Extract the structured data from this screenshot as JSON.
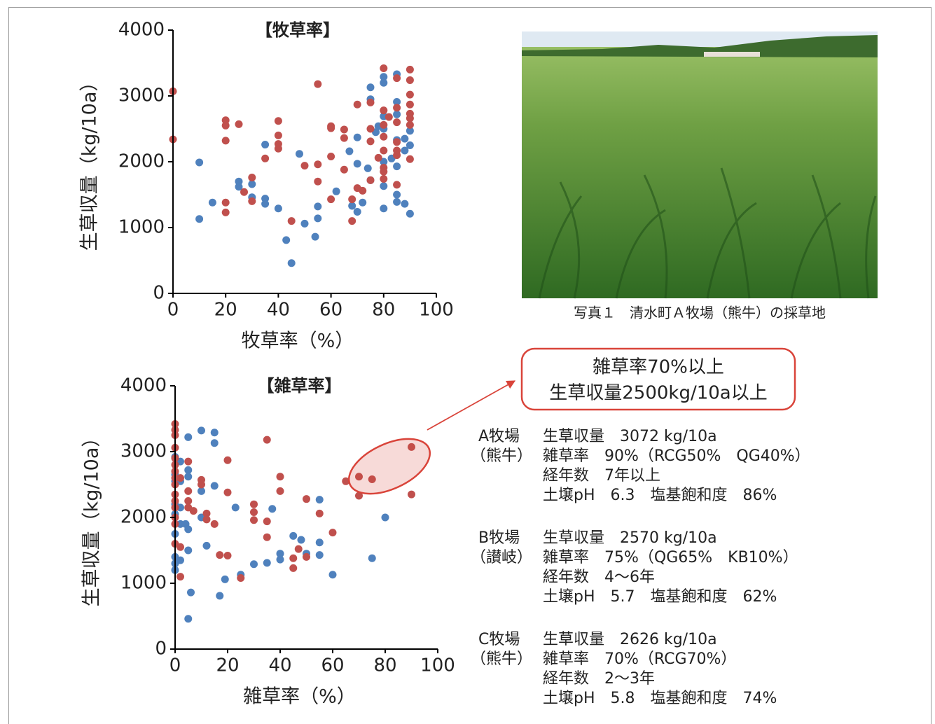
{
  "chart_data": [
    {
      "type": "scatter",
      "title": "【牧草率】",
      "xlabel": "牧草率（%）",
      "ylabel": "生草収量（kg/10a）",
      "xlim": [
        0,
        100
      ],
      "ylim": [
        0,
        4000
      ],
      "xticks": [
        0,
        20,
        40,
        60,
        80,
        100
      ],
      "yticks": [
        0,
        1000,
        2000,
        3000,
        4000
      ],
      "grid": false,
      "series": [
        {
          "color": "#4f81bd",
          "x": [
            10,
            10,
            15,
            25,
            25,
            30,
            30,
            35,
            35,
            35,
            40,
            43,
            45,
            48,
            50,
            54,
            55,
            55,
            62,
            67,
            68,
            70,
            70,
            70,
            72,
            74,
            75,
            75,
            75,
            77,
            78,
            80,
            80,
            80,
            80,
            80,
            80,
            80,
            83,
            85,
            85,
            85,
            85,
            85,
            85,
            85,
            88,
            88,
            88,
            90,
            90,
            90
          ],
          "values": [
            1990,
            1130,
            1380,
            1700,
            1620,
            1660,
            1460,
            2260,
            1440,
            1360,
            1290,
            810,
            460,
            2120,
            1060,
            860,
            1140,
            1320,
            1550,
            2160,
            1330,
            2370,
            1970,
            1240,
            1380,
            1900,
            2950,
            3130,
            1720,
            2450,
            2540,
            3290,
            3200,
            2690,
            2500,
            2000,
            1630,
            1290,
            2050,
            3330,
            2910,
            2720,
            2330,
            1930,
            1500,
            1390,
            2350,
            2170,
            1360,
            2470,
            2250,
            1210
          ]
        },
        {
          "color": "#c0504d",
          "x": [
            0,
            0,
            20,
            20,
            20,
            20,
            20,
            25,
            27,
            30,
            30,
            35,
            40,
            40,
            40,
            40,
            45,
            50,
            55,
            55,
            55,
            60,
            60,
            60,
            60,
            65,
            65,
            65,
            68,
            68,
            70,
            70,
            72,
            75,
            75,
            75,
            75,
            78,
            80,
            80,
            80,
            80,
            80,
            80,
            80,
            80,
            82,
            85,
            85,
            85,
            85,
            85,
            85,
            85,
            90,
            90,
            90,
            90,
            90,
            90,
            90,
            90
          ],
          "values": [
            3070,
            2340,
            2630,
            2550,
            2320,
            1380,
            1230,
            2570,
            1540,
            1760,
            1400,
            2050,
            2620,
            2400,
            2270,
            2200,
            1100,
            1940,
            3180,
            1960,
            1700,
            2540,
            2510,
            2080,
            1430,
            2490,
            2360,
            1880,
            1430,
            1100,
            2870,
            1600,
            1560,
            2900,
            2500,
            2310,
            1720,
            2060,
            3420,
            2780,
            2560,
            2380,
            2170,
            1910,
            1850,
            1740,
            2680,
            3270,
            2820,
            2600,
            2300,
            2170,
            2100,
            1650,
            3400,
            3240,
            3020,
            2870,
            2730,
            2660,
            2560,
            2040
          ]
        }
      ]
    },
    {
      "type": "scatter",
      "title": "【雑草率】",
      "xlabel": "雑草率（%）",
      "ylabel": "生草収量（kg/10a）",
      "xlim": [
        0,
        100
      ],
      "ylim": [
        0,
        4000
      ],
      "xticks": [
        0,
        20,
        40,
        60,
        80,
        100
      ],
      "yticks": [
        0,
        1000,
        2000,
        3000,
        4000
      ],
      "grid": false,
      "series": [
        {
          "color": "#4f81bd",
          "x": [
            0,
            0,
            0,
            0,
            0,
            0,
            0,
            0,
            0,
            2,
            2,
            2,
            2,
            2,
            4,
            5,
            5,
            5,
            5,
            5,
            5,
            6,
            10,
            10,
            10,
            12,
            15,
            15,
            15,
            17,
            19,
            23,
            25,
            30,
            35,
            37,
            40,
            40,
            45,
            48,
            50,
            55,
            55,
            55,
            60,
            75,
            80
          ],
          "values": [
            2920,
            2650,
            2550,
            2200,
            2050,
            1750,
            1400,
            1300,
            1200,
            2850,
            2550,
            2150,
            1900,
            1350,
            1900,
            3220,
            2720,
            2620,
            1820,
            1500,
            460,
            860,
            3320,
            2400,
            2000,
            1570,
            3290,
            3130,
            2480,
            810,
            1060,
            2150,
            1130,
            1290,
            1310,
            2130,
            1450,
            1360,
            1720,
            1660,
            1450,
            2270,
            1620,
            1430,
            1130,
            1380,
            2000
          ]
        },
        {
          "color": "#c0504d",
          "x": [
            0,
            0,
            0,
            0,
            0,
            0,
            0,
            0,
            0,
            0,
            0,
            0,
            0,
            0,
            0,
            2,
            2,
            2,
            5,
            5,
            5,
            5,
            7,
            10,
            10,
            12,
            12,
            15,
            17,
            20,
            20,
            20,
            25,
            30,
            30,
            30,
            35,
            35,
            35,
            40,
            40,
            45,
            45,
            47,
            50,
            50,
            55,
            60,
            65,
            70,
            70,
            75,
            90,
            90
          ],
          "values": [
            3420,
            3330,
            3250,
            3060,
            2900,
            2800,
            2700,
            2600,
            2500,
            2350,
            2250,
            2150,
            2000,
            1900,
            1600,
            2600,
            1550,
            1100,
            2850,
            2400,
            2250,
            2150,
            2100,
            2570,
            2500,
            2060,
            1970,
            1900,
            1430,
            2870,
            2380,
            1420,
            1080,
            2200,
            2080,
            1960,
            3180,
            1940,
            1700,
            2620,
            2400,
            1380,
            1230,
            1520,
            2280,
            1400,
            2060,
            1770,
            2550,
            2620,
            2330,
            2580,
            3070,
            2350
          ]
        }
      ]
    }
  ],
  "photo_caption": "写真１　清水町Ａ牧場（熊牛）の採草地",
  "callout": [
    "雑草率70%以上",
    "生草収量2500kg/10a以上"
  ],
  "farms": [
    {
      "name": "A牧場",
      "area": "（熊牛）",
      "lines": [
        "生草収量　3072 kg/10a",
        "雑草率　90%（RCG50%　QG40%）",
        "経年数　7年以上",
        "土壌pH　6.3　塩基飽和度　86%"
      ]
    },
    {
      "name": "B牧場",
      "area": "（讃岐）",
      "lines": [
        "生草収量　2570 kg/10a",
        "雑草率　75%（QG65%　KB10%）",
        "経年数　4～6年",
        "土壌pH　5.7　塩基飽和度　62%"
      ]
    },
    {
      "name": "C牧場",
      "area": "（熊牛）",
      "lines": [
        "生草収量　2626 kg/10a",
        "雑草率　70%（RCG70%）",
        "経年数　2～3年",
        "土壌pH　5.8　塩基飽和度　74%"
      ]
    }
  ]
}
